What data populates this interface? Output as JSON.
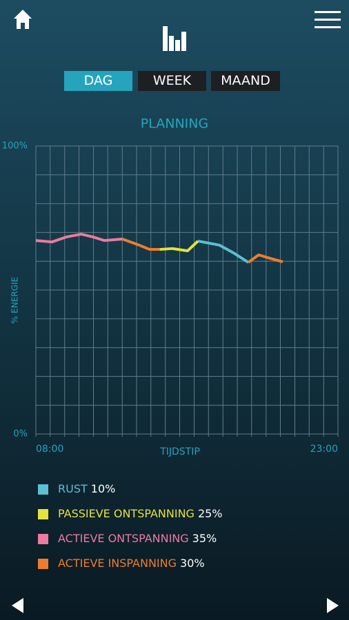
{
  "ui": {
    "tabs": [
      "DAG",
      "WEEK",
      "MAAND"
    ]
  },
  "chart_data": {
    "type": "line",
    "title": "PLANNING",
    "x_label": "TIJDSTIP",
    "y_label": "% ENERGIE",
    "x": [
      8.0,
      8.8,
      9.5,
      10.25,
      10.85,
      11.4,
      12.3,
      13.05,
      13.65,
      14.15,
      14.78,
      15.53,
      16.05,
      17.11,
      17.86,
      18.55,
      19.06,
      19.64,
      20.26
    ],
    "series": [
      {
        "name": "RUST",
        "color": "#5bc0d3",
        "share": 10,
        "share_label": "10%",
        "values": [
          null,
          null,
          null,
          null,
          null,
          null,
          null,
          null,
          null,
          null,
          null,
          null,
          67.0,
          65.6,
          62.7,
          59.6,
          null,
          null,
          null
        ]
      },
      {
        "name": "PASSIEVE ONTSPANNING",
        "color": "#e5e23c",
        "share": 25,
        "share_label": "25%",
        "values": [
          null,
          null,
          null,
          null,
          null,
          null,
          null,
          null,
          null,
          64.1,
          64.4,
          63.6,
          67.0,
          null,
          null,
          null,
          null,
          null,
          null
        ]
      },
      {
        "name": "ACTIEVE ONTSPANNING",
        "color": "#ec7aa1",
        "share": 35,
        "share_label": "35%",
        "values": [
          67.2,
          66.7,
          68.4,
          69.4,
          68.4,
          67.2,
          67.7,
          null,
          null,
          null,
          null,
          null,
          null,
          null,
          null,
          null,
          null,
          null,
          null
        ]
      },
      {
        "name": "ACTIEVE INSPANNING",
        "color": "#ee7d2b",
        "share": 30,
        "share_label": "30%",
        "values": [
          null,
          null,
          null,
          null,
          null,
          null,
          67.7,
          65.8,
          64.1,
          64.1,
          null,
          null,
          null,
          null,
          null,
          59.6,
          62.2,
          61.0,
          59.8
        ]
      }
    ],
    "xlim": [
      8,
      23
    ],
    "ylim": [
      0,
      100
    ],
    "xticks": [
      {
        "value": 8,
        "label": "08:00"
      },
      {
        "value": 23,
        "label": "23:00"
      }
    ],
    "yticks": [
      {
        "value": 0,
        "label": "0%"
      },
      {
        "value": 100,
        "label": "100%"
      }
    ],
    "xgrid": [
      8,
      8.71,
      9.43,
      10.14,
      10.86,
      11.57,
      12.29,
      13,
      13.71,
      14.43,
      15.14,
      15.86,
      16.57,
      17.29,
      18,
      18.71,
      19.43,
      20.14,
      20.86,
      21.57,
      22.29,
      23
    ],
    "ygrid": [
      0,
      10,
      20,
      30,
      40,
      50,
      60,
      70,
      80,
      90,
      100
    ],
    "grid": true
  }
}
